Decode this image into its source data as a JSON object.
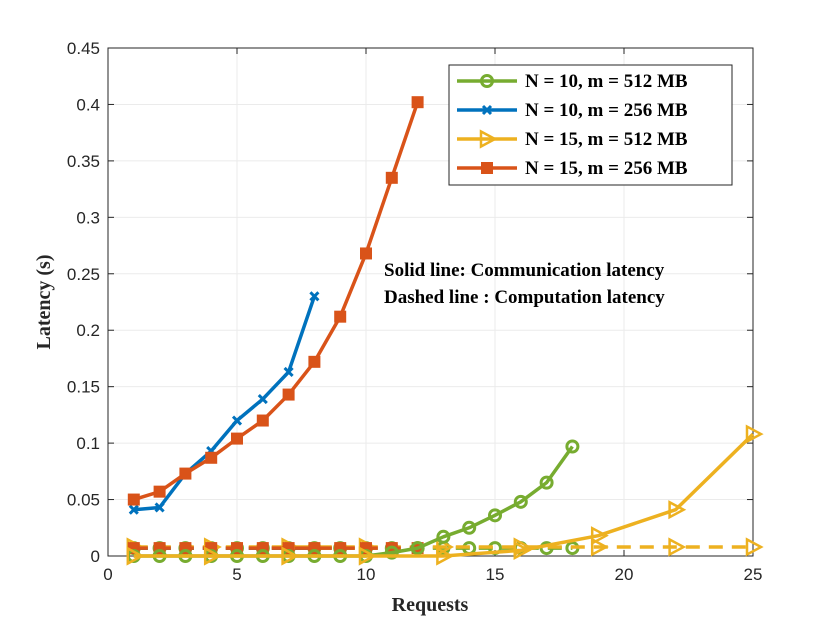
{
  "chart_data": {
    "type": "line",
    "xlabel": "Requests",
    "ylabel": "Latency (s)",
    "xlim": [
      0,
      25
    ],
    "ylim": [
      0,
      0.45
    ],
    "xticks": [
      0,
      5,
      10,
      15,
      20,
      25
    ],
    "xtick_labels": [
      "0",
      "5",
      "10",
      "15",
      "20",
      "25"
    ],
    "yticks": [
      0,
      0.05,
      0.1,
      0.15,
      0.2,
      0.25,
      0.3,
      0.35,
      0.4,
      0.45
    ],
    "ytick_labels": [
      "0",
      "0.05",
      "0.1",
      "0.15",
      "0.2",
      "0.25",
      "0.3",
      "0.35",
      "0.4",
      "0.45"
    ],
    "grid": true,
    "legend_position": "top-right",
    "annotations": [
      "Solid line: Communication latency",
      "Dashed line : Computation latency"
    ],
    "series": [
      {
        "name": "N = 10, m = 512 MB",
        "color": "#77AC30",
        "marker": "circle",
        "communication": {
          "x": [
            1,
            2,
            3,
            4,
            5,
            6,
            7,
            8,
            9,
            10,
            11,
            12,
            13,
            14,
            15,
            16,
            17,
            18
          ],
          "y": [
            0,
            0,
            0,
            0,
            0,
            0,
            0,
            0,
            0,
            0,
            0.003,
            0.007,
            0.017,
            0.025,
            0.036,
            0.048,
            0.065,
            0.097
          ]
        },
        "computation": {
          "x": [
            1,
            2,
            3,
            4,
            5,
            6,
            7,
            8,
            9,
            10,
            11,
            12,
            13,
            14,
            15,
            16,
            17,
            18
          ],
          "y": [
            0.007,
            0.007,
            0.007,
            0.007,
            0.007,
            0.007,
            0.007,
            0.007,
            0.007,
            0.007,
            0.007,
            0.007,
            0.007,
            0.007,
            0.007,
            0.007,
            0.007,
            0.007
          ]
        }
      },
      {
        "name": "N = 10, m = 256 MB",
        "color": "#0072BD",
        "marker": "x",
        "communication": {
          "x": [
            1,
            2,
            3,
            4,
            5,
            6,
            7,
            8
          ],
          "y": [
            0.041,
            0.043,
            0.073,
            0.093,
            0.12,
            0.139,
            0.163,
            0.23
          ]
        },
        "computation": {
          "x": [
            1,
            2,
            3,
            4,
            5,
            6,
            7,
            8
          ],
          "y": [
            0.007,
            0.007,
            0.007,
            0.007,
            0.007,
            0.007,
            0.007,
            0.007
          ]
        }
      },
      {
        "name": "N = 15, m = 512 MB",
        "color": "#EDB120",
        "marker": "triangle-right",
        "communication": {
          "x": [
            1,
            4,
            7,
            10,
            13,
            16,
            19,
            22,
            25
          ],
          "y": [
            0,
            0,
            0,
            0,
            0,
            0.005,
            0.018,
            0.041,
            0.108
          ]
        },
        "computation": {
          "x": [
            1,
            4,
            7,
            10,
            13,
            16,
            19,
            22,
            25
          ],
          "y": [
            0.008,
            0.008,
            0.008,
            0.008,
            0.008,
            0.008,
            0.008,
            0.008,
            0.008
          ]
        }
      },
      {
        "name": "N = 15, m = 256 MB",
        "color": "#D95319",
        "marker": "square",
        "communication": {
          "x": [
            1,
            2,
            3,
            4,
            5,
            6,
            7,
            8,
            9,
            10,
            11,
            12
          ],
          "y": [
            0.05,
            0.057,
            0.073,
            0.087,
            0.104,
            0.12,
            0.143,
            0.172,
            0.212,
            0.268,
            0.335,
            0.402
          ]
        },
        "computation": {
          "x": [
            1,
            2,
            3,
            4,
            5,
            6,
            7,
            8,
            9,
            10,
            11,
            12
          ],
          "y": [
            0.007,
            0.007,
            0.007,
            0.007,
            0.007,
            0.007,
            0.007,
            0.007,
            0.007,
            0.007,
            0.007,
            0.007
          ]
        }
      }
    ]
  }
}
